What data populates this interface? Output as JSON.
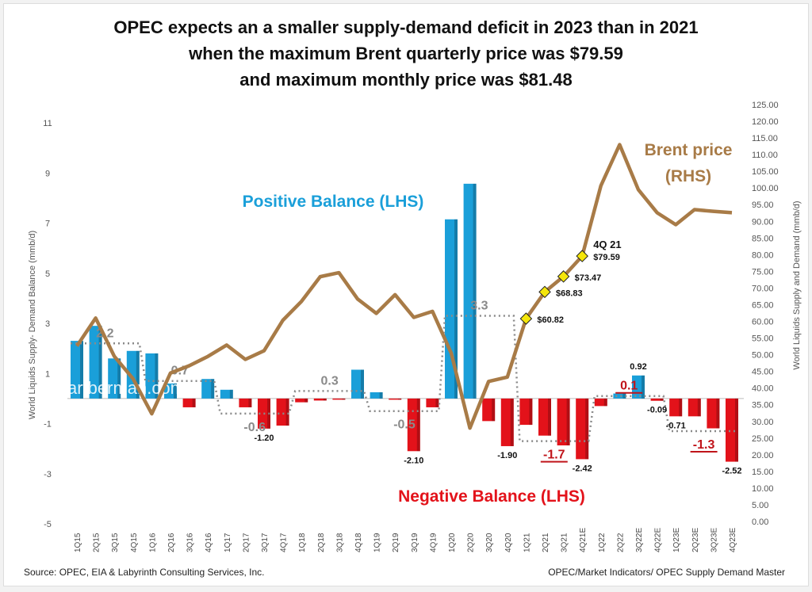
{
  "title_lines": [
    "OPEC expects an a smaller supply-demand deficit in 2023 than in 2021",
    "when the maximum Brent quarterly price was $79.59",
    "and maximum monthly price was $81.48"
  ],
  "footer": {
    "source": "Source:  OPEC, EIA & Labyrinth Consulting Services, Inc.",
    "reference": "OPEC/Market Indicators/ OPEC Supply Demand Master"
  },
  "watermark": "artberman.com",
  "colors": {
    "positive": "#1a9fd9",
    "negative": "#e3121a",
    "price": "#a87b47",
    "average": "#8a8a8a",
    "marker": "#f5e60a"
  },
  "chart_data": {
    "type": "bar+line",
    "ylabel_left": "World Liquids Supply- Demand Balance (mmb/d)",
    "ylabel_right": "World Liquids Supply and Demand (mmb/d)",
    "ylim_left": [
      -5,
      11
    ],
    "yticks_left": [
      "11",
      "9",
      "7",
      "5",
      "3",
      "1",
      "-1",
      "-3",
      "-5"
    ],
    "ylim_right": [
      0,
      125
    ],
    "yticks_right": [
      "125.00",
      "120.00",
      "115.00",
      "110.00",
      "105.00",
      "100.00",
      "95.00",
      "90.00",
      "85.00",
      "80.00",
      "75.00",
      "70.00",
      "65.00",
      "60.00",
      "55.00",
      "50.00",
      "45.00",
      "40.00",
      "35.00",
      "30.00",
      "25.00",
      "20.00",
      "15.00",
      "10.00",
      "5.00",
      "0.00"
    ],
    "grid": false,
    "categories": [
      "1Q15",
      "2Q15",
      "3Q15",
      "4Q15",
      "1Q16",
      "2Q16",
      "3Q16",
      "4Q16",
      "1Q17",
      "2Q17",
      "3Q17",
      "4Q17",
      "1Q18",
      "2Q18",
      "3Q18",
      "4Q18",
      "1Q19",
      "2Q19",
      "3Q19",
      "4Q19",
      "1Q20",
      "2Q20",
      "3Q20",
      "4Q20",
      "1Q21",
      "2Q21",
      "3Q21",
      "4Q21E",
      "1Q22",
      "2Q22",
      "3Q22E",
      "4Q22E",
      "1Q23E",
      "2Q23E",
      "3Q23E",
      "4Q23E"
    ],
    "balance": [
      2.3,
      2.9,
      1.6,
      1.9,
      1.8,
      0.6,
      -0.35,
      0.78,
      0.35,
      -0.35,
      -1.2,
      -1.08,
      -0.15,
      -0.08,
      -0.02,
      1.15,
      0.25,
      -0.02,
      -2.1,
      -0.35,
      7.15,
      8.57,
      -0.9,
      -1.9,
      -1.05,
      -1.48,
      -1.87,
      -2.42,
      -0.3,
      0.2,
      0.92,
      -0.09,
      -0.71,
      -0.71,
      -1.19,
      -2.52
    ],
    "brent_price": [
      52.6,
      61,
      49.5,
      42.8,
      32.3,
      44.5,
      46.7,
      49.5,
      52.9,
      48.6,
      51.2,
      60.3,
      66,
      73.4,
      74.6,
      66.7,
      62.4,
      68,
      61.2,
      63,
      50.5,
      28,
      42,
      43.3,
      60.82,
      68.83,
      73.47,
      79.59,
      100.7,
      113,
      99.5,
      92.6,
      89,
      93.5,
      93,
      92.6
    ],
    "annual_averages": [
      {
        "year": "2015",
        "value": "2.2",
        "highlight": false
      },
      {
        "year": "2016",
        "value": "0.7",
        "highlight": false
      },
      {
        "year": "2017",
        "value": "-0.6",
        "highlight": false
      },
      {
        "year": "2018",
        "value": "0.3",
        "highlight": false
      },
      {
        "year": "2019",
        "value": "-0.5",
        "highlight": false
      },
      {
        "year": "2020",
        "value": "3.3",
        "highlight": false
      },
      {
        "year": "2021",
        "value": "-1.7",
        "highlight": true
      },
      {
        "year": "2022",
        "value": "0.1",
        "highlight": true
      },
      {
        "year": "2023",
        "value": "-1.3",
        "highlight": true
      }
    ],
    "bar_labels": [
      {
        "category": "3Q17",
        "text": "-1.20"
      },
      {
        "category": "3Q19",
        "text": "-2.10"
      },
      {
        "category": "4Q20",
        "text": "-1.90"
      },
      {
        "category": "4Q21E",
        "text": "-2.42"
      },
      {
        "category": "3Q22E",
        "text": "0.92"
      },
      {
        "category": "4Q22E",
        "text": "-0.09"
      },
      {
        "category": "1Q23E",
        "text": "-0.71"
      },
      {
        "category": "4Q23E",
        "text": "-2.52"
      }
    ],
    "price_labels": [
      {
        "category": "1Q21",
        "text": "$60.82"
      },
      {
        "category": "2Q21",
        "text": "$68.83"
      },
      {
        "category": "3Q21",
        "text": "$73.47"
      },
      {
        "category": "4Q21E",
        "text": "$79.59",
        "caption": "4Q 21"
      }
    ],
    "annotations": {
      "positive": "Positive Balance (LHS)",
      "negative": "Negative Balance (LHS)",
      "price_line1": "Brent price",
      "price_line2": "(RHS)"
    }
  }
}
